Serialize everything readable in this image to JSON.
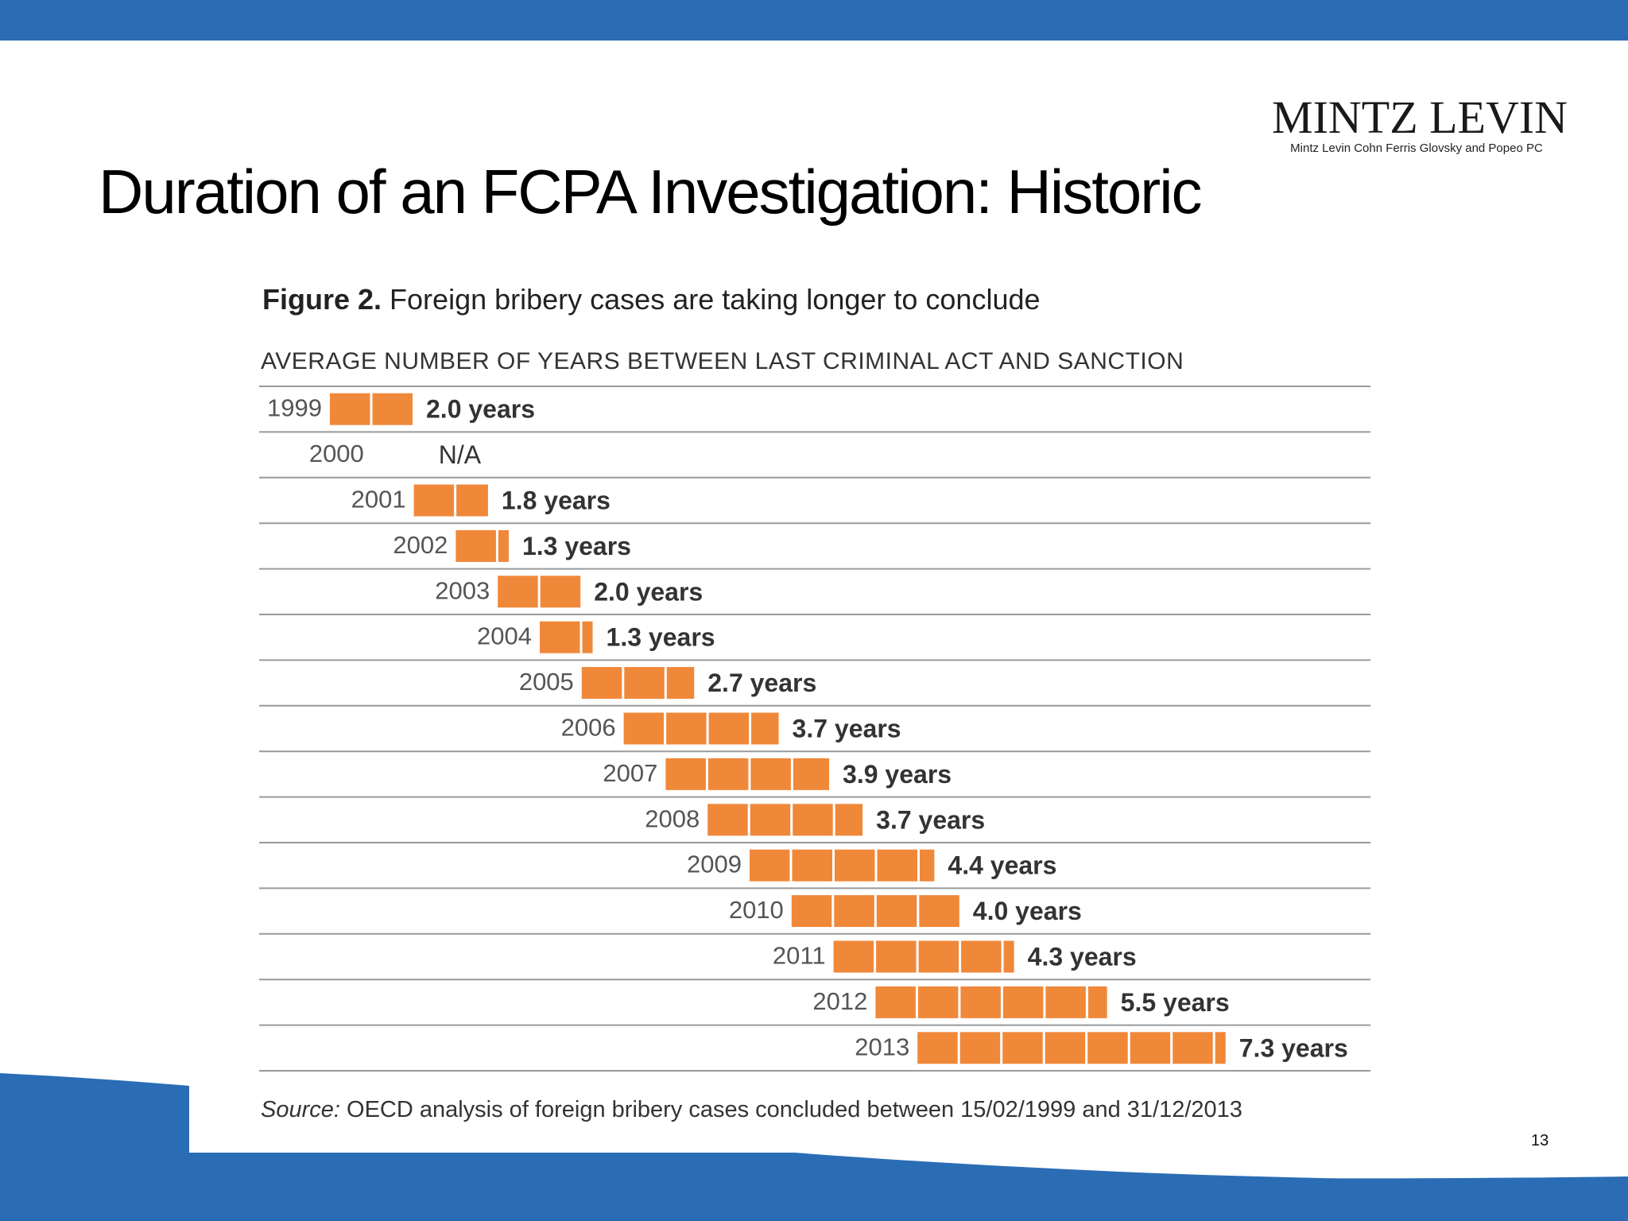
{
  "slide": {
    "title": "Duration of an FCPA Investigation: Historic",
    "page_number": "13",
    "accent_color": "#2b6db5"
  },
  "logo": {
    "name": "MINTZ LEVIN",
    "tagline": "Mintz Levin Cohn Ferris Glovsky and Popeo PC"
  },
  "figure": {
    "label": "Figure 2.",
    "caption": "Foreign bribery cases are taking longer to conclude",
    "source_label": "Source:",
    "source_text": "OECD analysis of foreign bribery cases concluded between 15/02/1999 and 31/12/2013"
  },
  "chart_data": {
    "type": "bar",
    "orientation": "horizontal",
    "title": "AVERAGE NUMBER OF YEARS BETWEEN LAST CRIMINAL ACT AND SANCTION",
    "categories": [
      "1999",
      "2000",
      "2001",
      "2002",
      "2003",
      "2004",
      "2005",
      "2006",
      "2007",
      "2008",
      "2009",
      "2010",
      "2011",
      "2012",
      "2013"
    ],
    "values": [
      2.0,
      null,
      1.8,
      1.3,
      2.0,
      1.3,
      2.7,
      3.7,
      3.9,
      3.7,
      4.4,
      4.0,
      4.3,
      5.5,
      7.3
    ],
    "value_labels": [
      "2.0 years",
      "N/A",
      "1.8 years",
      "1.3 years",
      "2.0 years",
      "1.3 years",
      "2.7 years",
      "3.7 years",
      "3.9 years",
      "3.7 years",
      "4.4 years",
      "4.0 years",
      "4.3 years",
      "5.5 years",
      "7.3 years"
    ],
    "bar_color": "#f0883a",
    "rule_color": "#9a9a9a"
  }
}
